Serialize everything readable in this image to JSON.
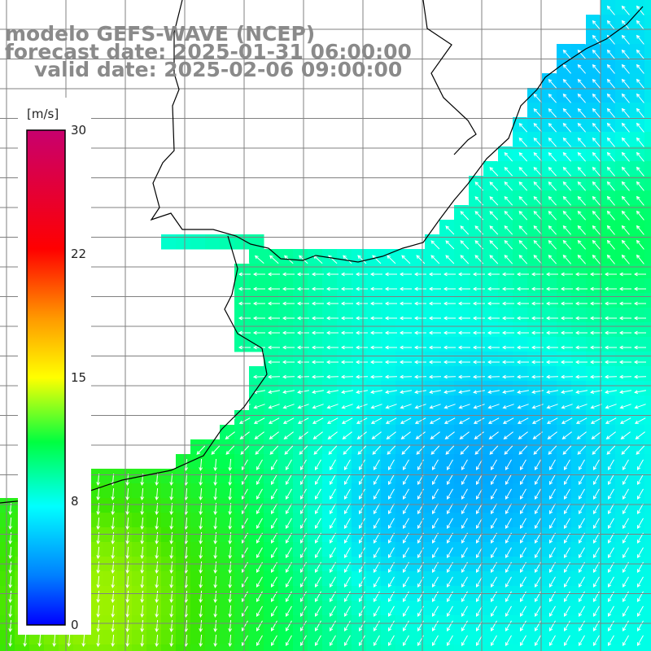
{
  "titles": {
    "line1": "modelo GEFS-WAVE (NCEP)",
    "line2": "forecast date: 2025-01-31 06:00:00",
    "line3": "valid date: 2025-02-06 09:00:00"
  },
  "colorbar": {
    "unit": "[m/s]",
    "min": 0,
    "max": 30,
    "ticks": [
      "30",
      "22",
      "15",
      "8",
      "0"
    ],
    "tick_values": [
      30,
      22,
      15,
      8,
      0
    ],
    "colors": [
      "#0000ff",
      "#00c8ff",
      "#00ffff",
      "#00ff00",
      "#ffff00",
      "#ff8c00",
      "#ff0000",
      "#c8006e"
    ]
  },
  "colors": {
    "land": "#ffffff",
    "coastline": "#000000",
    "grid": "#808080",
    "vector": "#ffffff",
    "title": "#8a8a8a"
  },
  "field": {
    "variable": "wind speed",
    "units": "m/s",
    "region": "South Atlantic off Río de la Plata / Uruguay / Rio Grande do Sul",
    "description": "Wind speed colored field with white direction arrows; stronger winds (green) in southwest, weaker (blue) in central/east",
    "approx_range_ms": [
      4,
      14
    ]
  }
}
